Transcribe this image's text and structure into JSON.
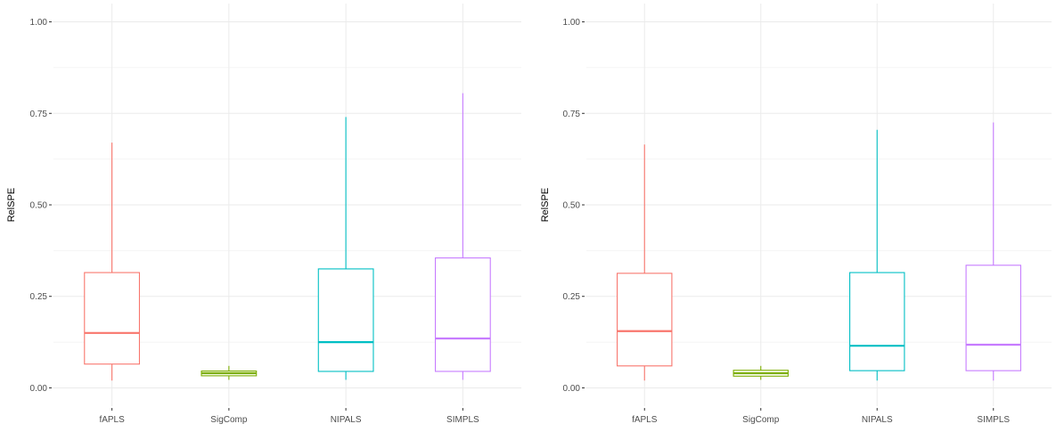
{
  "chart_data": [
    {
      "type": "box",
      "title": "",
      "xlabel": "",
      "ylabel": "RelSPE",
      "ylim": [
        -0.05,
        1.05
      ],
      "yticks": [
        0.0,
        0.25,
        0.5,
        0.75,
        1.0
      ],
      "ytick_labels": [
        "0.00",
        "0.25",
        "0.50",
        "0.75",
        "1.00"
      ],
      "grid": true,
      "categories": [
        "fAPLS",
        "SigComp",
        "NIPALS",
        "SIMPLS"
      ],
      "colors": [
        "#F8766D",
        "#7CAE00",
        "#00BFC4",
        "#C77CFF"
      ],
      "boxes": [
        {
          "min": 0.02,
          "q1": 0.065,
          "median": 0.15,
          "q3": 0.315,
          "max": 0.67
        },
        {
          "min": 0.022,
          "q1": 0.033,
          "median": 0.04,
          "q3": 0.046,
          "max": 0.06
        },
        {
          "min": 0.022,
          "q1": 0.045,
          "median": 0.125,
          "q3": 0.325,
          "max": 0.74
        },
        {
          "min": 0.022,
          "q1": 0.045,
          "median": 0.135,
          "q3": 0.355,
          "max": 0.805
        }
      ]
    },
    {
      "type": "box",
      "title": "",
      "xlabel": "",
      "ylabel": "RelSPE",
      "ylim": [
        -0.05,
        1.05
      ],
      "yticks": [
        0.0,
        0.25,
        0.5,
        0.75,
        1.0
      ],
      "ytick_labels": [
        "0.00",
        "0.25",
        "0.50",
        "0.75",
        "1.00"
      ],
      "grid": true,
      "categories": [
        "fAPLS",
        "SigComp",
        "NIPALS",
        "SIMPLS"
      ],
      "colors": [
        "#F8766D",
        "#7CAE00",
        "#00BFC4",
        "#C77CFF"
      ],
      "boxes": [
        {
          "min": 0.02,
          "q1": 0.06,
          "median": 0.155,
          "q3": 0.313,
          "max": 0.665
        },
        {
          "min": 0.022,
          "q1": 0.032,
          "median": 0.04,
          "q3": 0.048,
          "max": 0.06
        },
        {
          "min": 0.02,
          "q1": 0.047,
          "median": 0.115,
          "q3": 0.315,
          "max": 0.705
        },
        {
          "min": 0.02,
          "q1": 0.047,
          "median": 0.118,
          "q3": 0.335,
          "max": 0.725
        }
      ]
    }
  ]
}
